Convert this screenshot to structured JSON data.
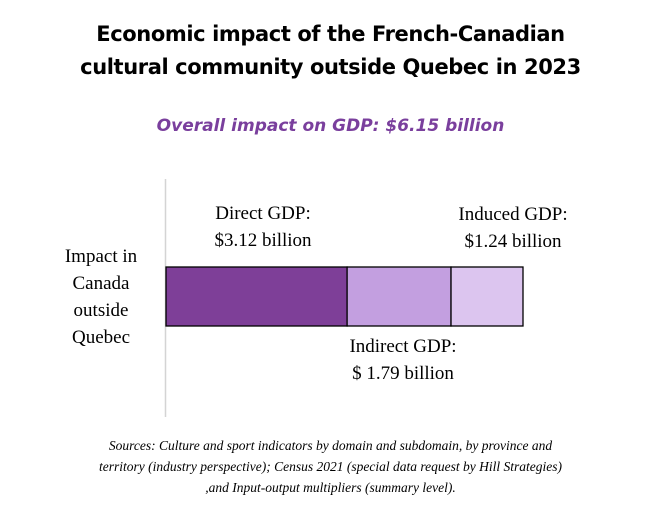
{
  "title_lines": [
    "Economic impact of the French-Canadian",
    "cultural community outside Quebec in 2023"
  ],
  "subtitle": "Overall impact on GDP: $6.15 billion",
  "source_lines": [
    "Sources: Culture and sport indicators by domain and subdomain, by province and",
    "territory (industry perspective); Census 2021 (special data request by Hill Strategies)",
    ",and Input-output multipliers (summary level)."
  ],
  "chart_data": {
    "type": "bar",
    "orientation": "horizontal",
    "stacked": true,
    "title": "Economic impact of the French-Canadian cultural community outside Quebec in 2023",
    "subtitle": "Overall impact on GDP: $6.15 billion",
    "total": 6.15,
    "unit": "billion $",
    "categories": [
      "Impact in Canada outside Quebec"
    ],
    "category_label_lines": [
      "Impact in",
      "Canada",
      "outside",
      "Quebec"
    ],
    "xlim": [
      0,
      6.15
    ],
    "grid": false,
    "legend": "none",
    "series": [
      {
        "name": "Direct GDP",
        "values": [
          3.12
        ],
        "color": "#7e3f98",
        "label_lines": [
          "Direct GDP:",
          "$3.12 billion"
        ],
        "label_position": "above"
      },
      {
        "name": "Indirect GDP",
        "values": [
          1.79
        ],
        "color": "#c39fe0",
        "label_lines": [
          "Indirect GDP:",
          "$ 1.79 billion"
        ],
        "label_position": "below"
      },
      {
        "name": "Induced GDP",
        "values": [
          1.24
        ],
        "color": "#dcc5ef",
        "label_lines": [
          "Induced GDP:",
          "$1.24 billion"
        ],
        "label_position": "above"
      }
    ]
  }
}
